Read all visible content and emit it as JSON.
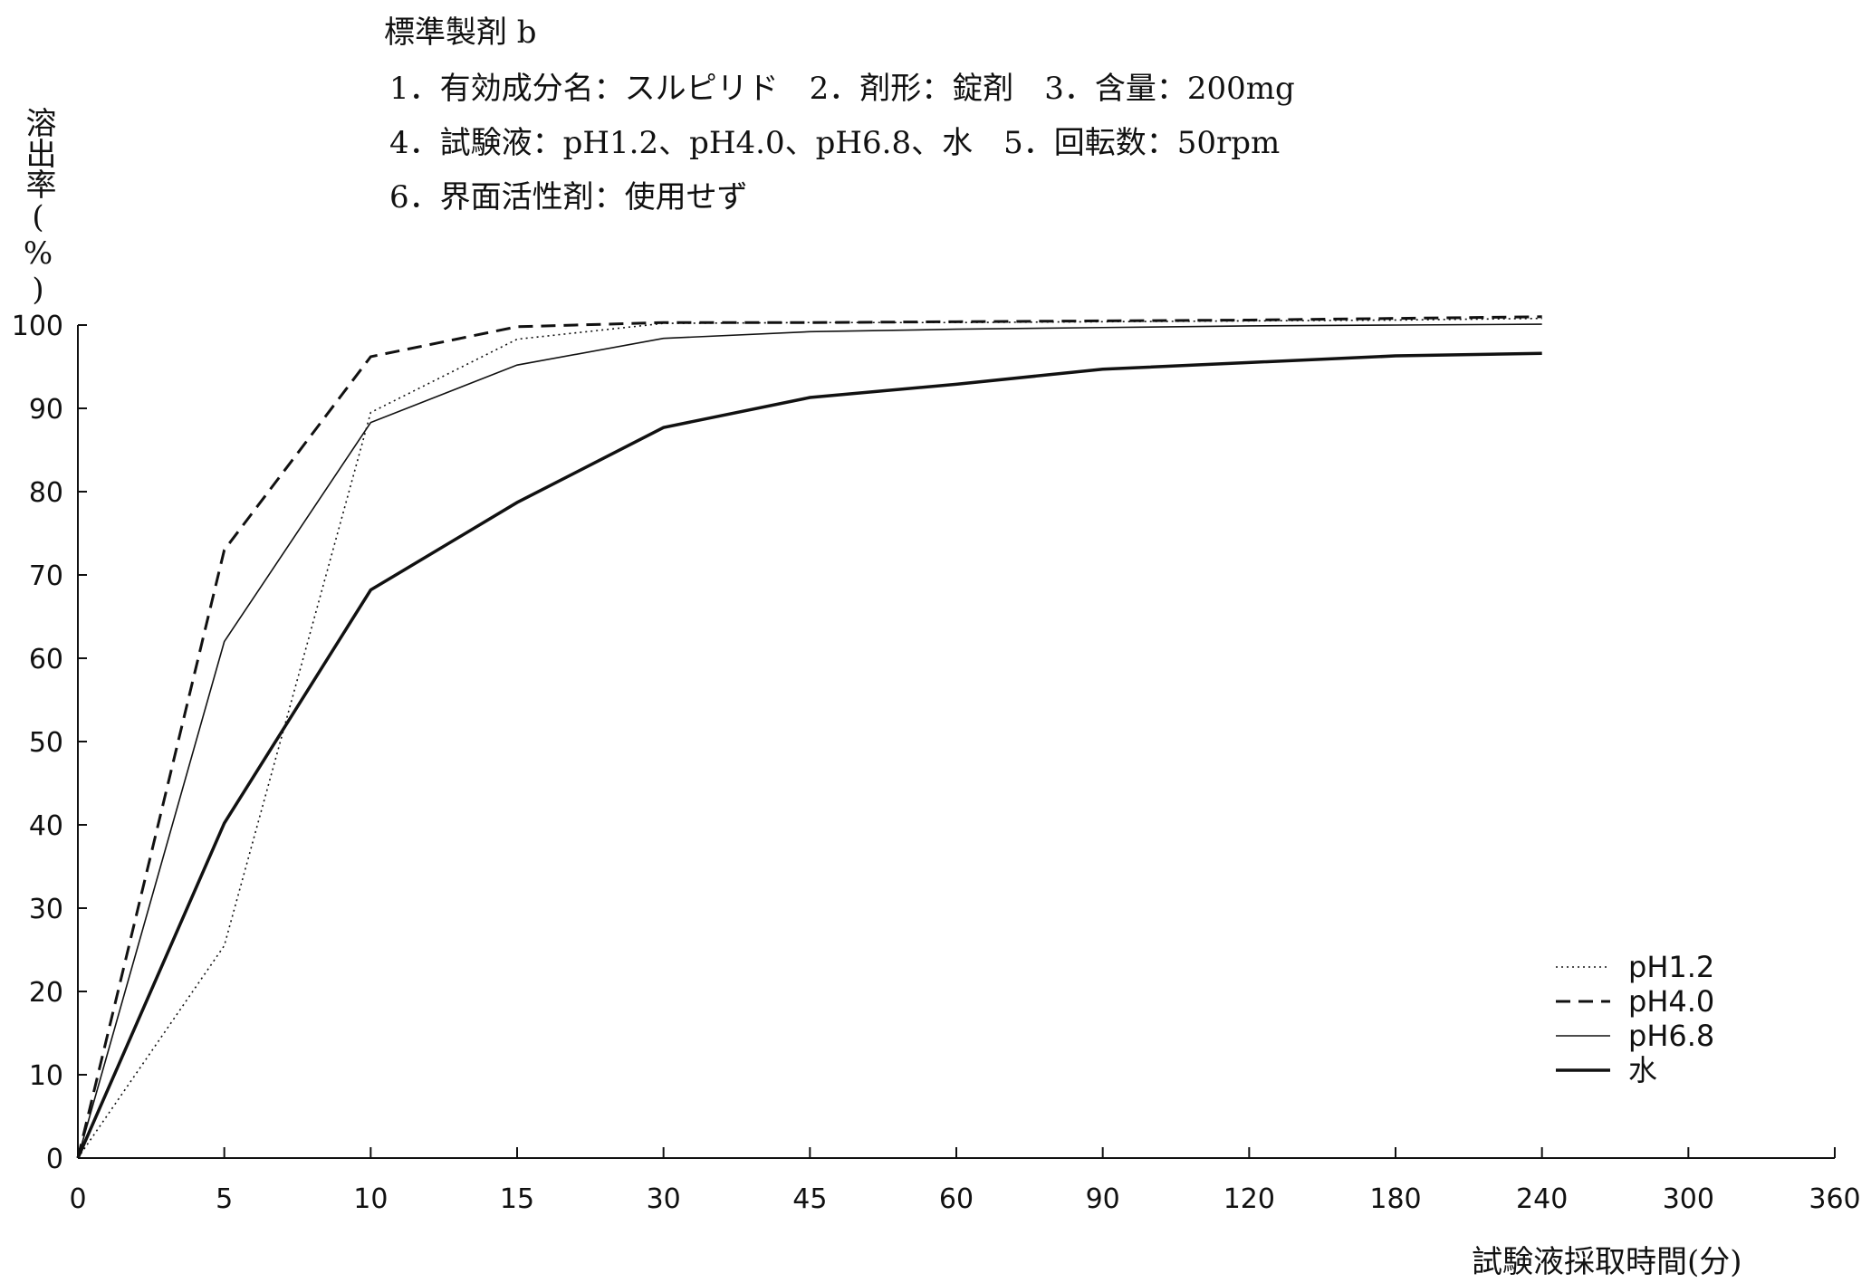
{
  "header": {
    "title": "標準製剤 b",
    "line1": "1．有効成分名：スルピリド　2．剤形：錠剤　3．含量：200mg",
    "line2": "4．試験液：pH1.2、pH4.0、pH6.8、水　5．回転数：50rpm",
    "line3": "6．界面活性剤：使用せず"
  },
  "chart_data": {
    "type": "line",
    "title": "標準製剤 b",
    "xlabel": "試験液採取時間(分)",
    "ylabel": "溶出率(%)",
    "x_ticks": [
      "0",
      "5",
      "10",
      "15",
      "30",
      "45",
      "60",
      "90",
      "120",
      "180",
      "240",
      "300",
      "360"
    ],
    "x": [
      0,
      5,
      10,
      15,
      30,
      45,
      60,
      90,
      120,
      180,
      240
    ],
    "y_ticks": [
      "0",
      "10",
      "20",
      "30",
      "40",
      "50",
      "60",
      "70",
      "80",
      "90",
      "100"
    ],
    "ylim": [
      0,
      100
    ],
    "grid": false,
    "legend_position": "bottom-right",
    "series": [
      {
        "name": "pH1.2",
        "style": "dotted",
        "values": [
          0,
          25.5,
          89.5,
          98.3,
          100.2,
          100.3,
          100.3,
          100.4,
          100.5,
          100.6,
          100.8
        ]
      },
      {
        "name": "pH4.0",
        "style": "dashed",
        "values": [
          0,
          73.0,
          96.2,
          99.8,
          100.3,
          100.3,
          100.4,
          100.5,
          100.6,
          100.8,
          101.0
        ]
      },
      {
        "name": "pH6.8",
        "style": "thin",
        "values": [
          0,
          62.0,
          88.3,
          95.2,
          98.4,
          99.2,
          99.5,
          99.7,
          99.9,
          100.0,
          100.1
        ]
      },
      {
        "name": "水",
        "style": "thick",
        "values": [
          0,
          40.2,
          68.2,
          78.7,
          87.7,
          91.3,
          92.9,
          94.7,
          95.5,
          96.3,
          96.6
        ]
      }
    ]
  }
}
